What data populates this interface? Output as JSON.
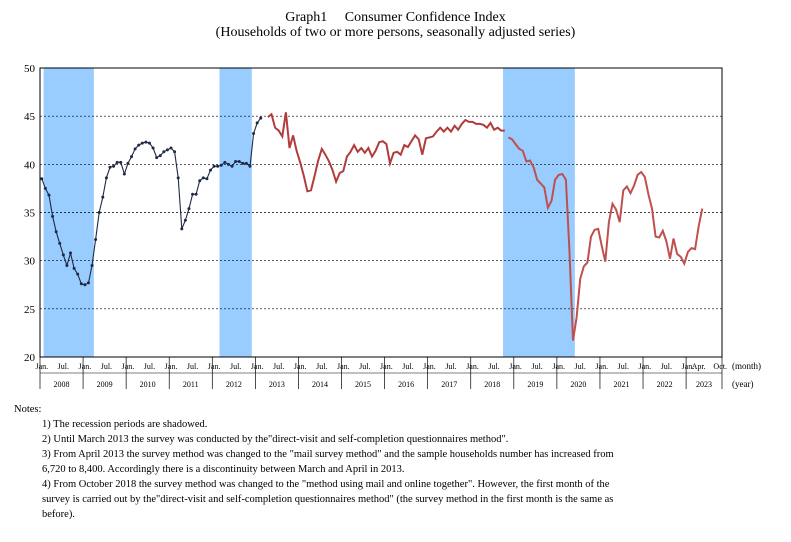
{
  "chart_data": {
    "type": "line",
    "title": "Graph1　 Consumer Confidence Index",
    "subtitle": "(Households of two or more persons, seasonally adjusted series)",
    "ylim": [
      20,
      50
    ],
    "yticks": [
      "20",
      "25",
      "30",
      "35",
      "40",
      "45",
      "50"
    ],
    "x_unit_label": "(month)",
    "year_unit_label": "(year)",
    "start": {
      "year": 2008,
      "month": 1
    },
    "end": {
      "year": 2023,
      "month": 10
    },
    "month_ticks": [
      {
        "label": "Jan.",
        "year": 2008,
        "month": 1
      },
      {
        "label": "Jul.",
        "year": 2008,
        "month": 7
      },
      {
        "label": "Jan.",
        "year": 2009,
        "month": 1
      },
      {
        "label": "Jul.",
        "year": 2009,
        "month": 7
      },
      {
        "label": "Jan.",
        "year": 2010,
        "month": 1
      },
      {
        "label": "Jul.",
        "year": 2010,
        "month": 7
      },
      {
        "label": "Jan.",
        "year": 2011,
        "month": 1
      },
      {
        "label": "Jul.",
        "year": 2011,
        "month": 7
      },
      {
        "label": "Jan.",
        "year": 2012,
        "month": 1
      },
      {
        "label": "Jul.",
        "year": 2012,
        "month": 7
      },
      {
        "label": "Jan.",
        "year": 2013,
        "month": 1
      },
      {
        "label": "Jul.",
        "year": 2013,
        "month": 7
      },
      {
        "label": "Jan.",
        "year": 2014,
        "month": 1
      },
      {
        "label": "Jul.",
        "year": 2014,
        "month": 7
      },
      {
        "label": "Jan.",
        "year": 2015,
        "month": 1
      },
      {
        "label": "Jul.",
        "year": 2015,
        "month": 7
      },
      {
        "label": "Jan.",
        "year": 2016,
        "month": 1
      },
      {
        "label": "Jul.",
        "year": 2016,
        "month": 7
      },
      {
        "label": "Jan.",
        "year": 2017,
        "month": 1
      },
      {
        "label": "Jul.",
        "year": 2017,
        "month": 7
      },
      {
        "label": "Jan.",
        "year": 2018,
        "month": 1
      },
      {
        "label": "Jul.",
        "year": 2018,
        "month": 7
      },
      {
        "label": "Jan.",
        "year": 2019,
        "month": 1
      },
      {
        "label": "Jul.",
        "year": 2019,
        "month": 7
      },
      {
        "label": "Jan.",
        "year": 2020,
        "month": 1
      },
      {
        "label": "Jul.",
        "year": 2020,
        "month": 7
      },
      {
        "label": "Jan.",
        "year": 2021,
        "month": 1
      },
      {
        "label": "Jul.",
        "year": 2021,
        "month": 7
      },
      {
        "label": "Jan.",
        "year": 2022,
        "month": 1
      },
      {
        "label": "Jul.",
        "year": 2022,
        "month": 7
      },
      {
        "label": "Jan.",
        "year": 2023,
        "month": 1
      },
      {
        "label": "Apr.",
        "year": 2023,
        "month": 4
      },
      {
        "label": "Oct.",
        "year": 2023,
        "month": 10
      }
    ],
    "years": [
      "2008",
      "2009",
      "2010",
      "2011",
      "2012",
      "2013",
      "2014",
      "2015",
      "2016",
      "2017",
      "2018",
      "2019",
      "2020",
      "2021",
      "2022",
      "2023"
    ],
    "recessions": [
      {
        "start": {
          "year": 2008,
          "month": 2
        },
        "end": {
          "year": 2009,
          "month": 3
        }
      },
      {
        "start": {
          "year": 2012,
          "month": 3
        },
        "end": {
          "year": 2012,
          "month": 11
        }
      },
      {
        "start": {
          "year": 2018,
          "month": 10
        },
        "end": {
          "year": 2020,
          "month": 5
        }
      }
    ],
    "series": [
      {
        "name": "Direct-visit and self-completion questionnaires method",
        "color": "#1f2a44",
        "markers": true,
        "start": {
          "year": 2008,
          "month": 1
        },
        "values": [
          38.5,
          37.5,
          36.8,
          34.6,
          33.0,
          31.8,
          30.6,
          29.5,
          30.8,
          29.2,
          28.6,
          27.6,
          27.5,
          27.7,
          29.5,
          32.2,
          35.0,
          36.6,
          38.6,
          39.7,
          39.8,
          40.2,
          40.2,
          39.0,
          40.1,
          40.8,
          41.6,
          42.0,
          42.2,
          42.3,
          42.2,
          41.7,
          40.7,
          40.9,
          41.3,
          41.5,
          41.7,
          41.3,
          38.6,
          33.3,
          34.2,
          35.4,
          36.9,
          36.9,
          38.3,
          38.6,
          38.5,
          39.4,
          39.8,
          39.8,
          39.9,
          40.2,
          40.0,
          39.8,
          40.3,
          40.3,
          40.1,
          40.1,
          39.8,
          43.2,
          44.3,
          44.8
        ]
      },
      {
        "name": "Mail survey method",
        "color": "#b23c3c",
        "markers": false,
        "start": {
          "year": 2013,
          "month": 4
        },
        "values": [
          44.9,
          45.2,
          43.8,
          43.5,
          42.9,
          45.4,
          41.7,
          43.0,
          41.4,
          40.2,
          38.8,
          37.2,
          37.3,
          38.8,
          40.4,
          41.6,
          41.0,
          40.3,
          39.4,
          38.2,
          39.1,
          39.3,
          40.8,
          41.3,
          42.0,
          41.3,
          41.7,
          41.2,
          41.7,
          40.8,
          41.4,
          42.3,
          42.4,
          42.1,
          40.1,
          41.2,
          41.3,
          41.0,
          42.0,
          41.8,
          42.4,
          43.0,
          42.6,
          41.0,
          42.7,
          42.8,
          42.9,
          43.4,
          43.8,
          43.4,
          43.8,
          43.4,
          44.0,
          43.6,
          44.2,
          44.6,
          44.4,
          44.4,
          44.2,
          44.2,
          44.1,
          43.8,
          44.3,
          43.6,
          43.8,
          43.5,
          43.5
        ]
      },
      {
        "name": "Method using mail and online together",
        "color": "#c0504d",
        "markers": false,
        "start": {
          "year": 2018,
          "month": 11
        },
        "values": [
          42.8,
          42.6,
          42.1,
          41.6,
          41.4,
          40.3,
          40.4,
          39.7,
          38.4,
          38.0,
          37.6,
          35.5,
          36.2,
          38.4,
          38.9,
          39.0,
          38.4,
          31.1,
          21.7,
          24.1,
          28.1,
          29.4,
          29.8,
          32.5,
          33.2,
          33.3,
          31.5,
          29.9,
          34.0,
          35.9,
          35.3,
          34.0,
          37.3,
          37.7,
          37.0,
          37.8,
          38.9,
          39.2,
          38.7,
          36.9,
          35.4,
          32.5,
          32.4,
          33.1,
          32.0,
          30.2,
          32.3,
          30.7,
          30.4,
          29.7,
          30.9,
          31.3,
          31.2,
          33.6,
          35.4
        ]
      }
    ]
  },
  "notes": {
    "heading": "Notes:",
    "items": [
      "1) The recession periods are shadowed.",
      "2) Until March 2013 the survey was conducted by the\"direct-visit and self-completion questionnaires method\".",
      "3) From April 2013 the survey method was changed to the \"mail survey method\" and the sample households number has increased from",
      "6,720 to 8,400. Accordingly there is a discontinuity between March and April in 2013.",
      "4) From October 2018 the survey method was changed to the \"method using mail and online together\". However, the first month of the",
      "survey is carried out by the\"direct-visit and self-completion questionnaires method\" (the survey method in the first month is the same as",
      "before)."
    ]
  },
  "colors": {
    "recession": "#99ccff",
    "grid": "#000000"
  }
}
